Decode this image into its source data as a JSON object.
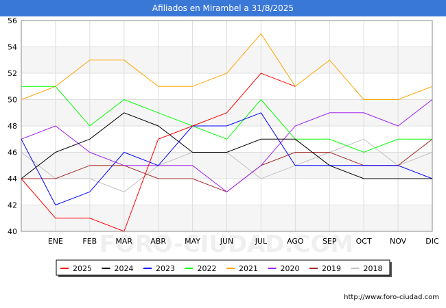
{
  "chart_data": {
    "type": "line",
    "title": "Afiliados en Mirambel a 31/8/2025",
    "categories": [
      "",
      "ENE",
      "FEB",
      "MAR",
      "ABR",
      "MAY",
      "JUN",
      "JUL",
      "AGO",
      "SEP",
      "OCT",
      "NOV",
      "DIC"
    ],
    "ylim": [
      40,
      56
    ],
    "yticks": [
      40,
      42,
      44,
      46,
      48,
      50,
      52,
      54,
      56
    ],
    "grid": true,
    "legend_position": "bottom",
    "series": [
      {
        "name": "2025",
        "color": "#ff0000",
        "values": [
          44,
          41,
          41,
          40,
          47,
          48,
          49,
          52,
          51,
          null,
          null,
          null,
          null
        ]
      },
      {
        "name": "2024",
        "color": "#000000",
        "values": [
          44,
          46,
          47,
          49,
          48,
          46,
          46,
          47,
          47,
          45,
          44,
          44,
          44
        ]
      },
      {
        "name": "2023",
        "color": "#0000ff",
        "values": [
          47,
          42,
          43,
          46,
          45,
          48,
          48,
          49,
          45,
          45,
          45,
          45,
          44
        ]
      },
      {
        "name": "2022",
        "color": "#00ff00",
        "values": [
          51,
          51,
          48,
          50,
          49,
          48,
          47,
          50,
          47,
          47,
          46,
          47,
          47
        ]
      },
      {
        "name": "2021",
        "color": "#ffa500",
        "values": [
          50,
          51,
          53,
          53,
          51,
          51,
          52,
          55,
          51,
          53,
          50,
          50,
          51
        ]
      },
      {
        "name": "2020",
        "color": "#a020f0",
        "values": [
          47,
          48,
          46,
          45,
          45,
          45,
          43,
          45,
          48,
          49,
          49,
          48,
          50
        ]
      },
      {
        "name": "2019",
        "color": "#a52a2a",
        "values": [
          44,
          44,
          45,
          45,
          44,
          44,
          43,
          45,
          46,
          46,
          45,
          45,
          47
        ]
      },
      {
        "name": "2018",
        "color": "#c0c0c0",
        "values": [
          46,
          44,
          44,
          43,
          45,
          46,
          46,
          44,
          45,
          46,
          47,
          45,
          46
        ]
      }
    ]
  },
  "watermark": "FORO-CIUDAD.COM",
  "footer": "http://www.foro-ciudad.com"
}
